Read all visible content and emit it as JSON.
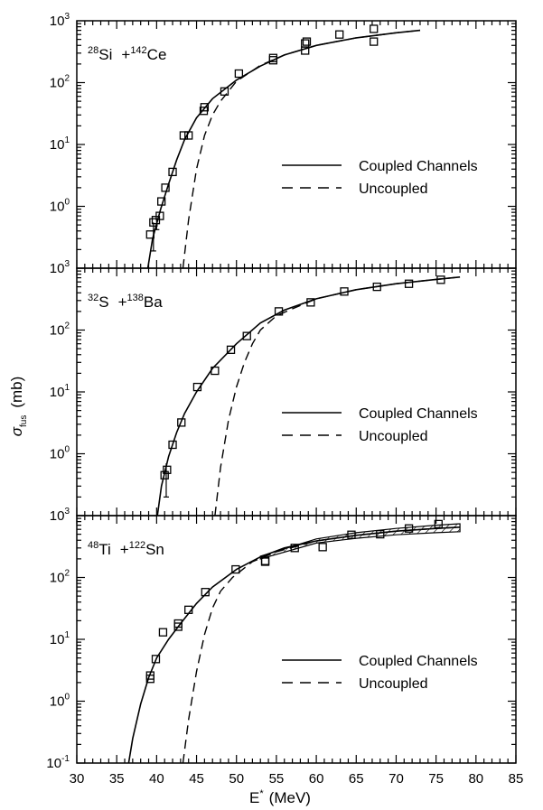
{
  "figure": {
    "ylabel_main": "σ",
    "ylabel_sub": "fus",
    "ylabel_unit": "(mb)",
    "xlabel_main": "E",
    "xlabel_sup": "*",
    "xlabel_unit": "(MeV)"
  },
  "chart_data": [
    {
      "type": "scatter",
      "title_parts": [
        {
          "sup": "28",
          "el": "Si"
        },
        {
          "text": "+"
        },
        {
          "sup": "142",
          "el": "Ce"
        }
      ],
      "xlim": [
        30,
        85
      ],
      "ylim_log": [
        0.1,
        1000
      ],
      "y_scale": "log",
      "legend": {
        "coupled": "Coupled Channels",
        "uncoupled": "Uncoupled"
      },
      "points": [
        [
          39.2,
          0.35
        ],
        [
          39.6,
          0.55
        ],
        [
          39.9,
          0.6
        ],
        [
          40.4,
          0.7
        ],
        [
          40.6,
          1.2
        ],
        [
          41.1,
          2.0
        ],
        [
          42.0,
          3.6
        ],
        [
          43.4,
          14
        ],
        [
          44.0,
          14
        ],
        [
          45.9,
          35
        ],
        [
          46.0,
          40
        ],
        [
          48.5,
          72
        ],
        [
          50.3,
          140
        ],
        [
          54.6,
          230
        ],
        [
          54.6,
          250
        ],
        [
          58.6,
          330
        ],
        [
          58.6,
          430
        ],
        [
          58.8,
          460
        ],
        [
          62.9,
          600
        ],
        [
          67.2,
          460
        ],
        [
          67.2,
          740
        ]
      ],
      "error_bars": [
        [
          39.6,
          0.19,
          0.55
        ],
        [
          40.0,
          0.42,
          0.6
        ]
      ],
      "coupled": [
        [
          38.9,
          0.1
        ],
        [
          39.5,
          0.3
        ],
        [
          40.5,
          0.9
        ],
        [
          41.5,
          2.3
        ],
        [
          42.5,
          5.6
        ],
        [
          43.5,
          12
        ],
        [
          45,
          27
        ],
        [
          47,
          55
        ],
        [
          50,
          110
        ],
        [
          53,
          185
        ],
        [
          56,
          280
        ],
        [
          60,
          400
        ],
        [
          65,
          530
        ],
        [
          70,
          640
        ],
        [
          73,
          700
        ]
      ],
      "uncoupled": [
        [
          43.3,
          0.1
        ],
        [
          44,
          0.6
        ],
        [
          45,
          4
        ],
        [
          46,
          14
        ],
        [
          47,
          30
        ],
        [
          48,
          50
        ],
        [
          50,
          105
        ],
        [
          53,
          190
        ],
        [
          56,
          280
        ],
        [
          60,
          400
        ],
        [
          65,
          530
        ],
        [
          70,
          640
        ],
        [
          73,
          700
        ]
      ]
    },
    {
      "type": "scatter",
      "title_parts": [
        {
          "sup": "32",
          "el": "S"
        },
        {
          "text": "+"
        },
        {
          "sup": "138",
          "el": "Ba"
        }
      ],
      "xlim": [
        30,
        85
      ],
      "ylim_log": [
        0.1,
        1000
      ],
      "y_scale": "log",
      "legend": {
        "coupled": "Coupled Channels",
        "uncoupled": "Uncoupled"
      },
      "points": [
        [
          41.0,
          0.45
        ],
        [
          41.3,
          0.55
        ],
        [
          42.0,
          1.4
        ],
        [
          43.1,
          3.2
        ],
        [
          45.1,
          12
        ],
        [
          47.3,
          22
        ],
        [
          49.3,
          48
        ],
        [
          51.3,
          80
        ],
        [
          55.3,
          200
        ],
        [
          59.3,
          280
        ],
        [
          63.5,
          420
        ],
        [
          67.6,
          500
        ],
        [
          71.6,
          560
        ],
        [
          75.6,
          650
        ]
      ],
      "error_bars": [
        [
          41.2,
          0.2,
          0.7
        ]
      ],
      "coupled": [
        [
          40.1,
          0.1
        ],
        [
          40.6,
          0.3
        ],
        [
          41.5,
          0.9
        ],
        [
          42.5,
          2.2
        ],
        [
          43.5,
          4.5
        ],
        [
          45,
          10
        ],
        [
          47,
          24
        ],
        [
          50,
          60
        ],
        [
          53,
          130
        ],
        [
          56,
          210
        ],
        [
          60,
          320
        ],
        [
          65,
          450
        ],
        [
          70,
          560
        ],
        [
          75,
          660
        ],
        [
          78,
          720
        ]
      ],
      "uncoupled": [
        [
          47.3,
          0.1
        ],
        [
          48,
          0.6
        ],
        [
          49,
          3.5
        ],
        [
          50,
          12
        ],
        [
          51,
          30
        ],
        [
          52,
          60
        ],
        [
          53,
          100
        ],
        [
          55,
          170
        ],
        [
          57,
          220
        ],
        [
          60,
          320
        ],
        [
          65,
          450
        ],
        [
          70,
          560
        ],
        [
          75,
          660
        ],
        [
          78,
          720
        ]
      ]
    },
    {
      "type": "scatter",
      "title_parts": [
        {
          "sup": "48",
          "el": "Ti"
        },
        {
          "text": "+"
        },
        {
          "sup": "122",
          "el": "Sn"
        }
      ],
      "xlim": [
        30,
        85
      ],
      "ylim_log": [
        0.1,
        1000
      ],
      "y_scale": "log",
      "legend": {
        "coupled": "Coupled Channels",
        "uncoupled": "Uncoupled"
      },
      "points": [
        [
          39.2,
          2.3
        ],
        [
          39.2,
          2.6
        ],
        [
          39.9,
          4.8
        ],
        [
          40.8,
          13
        ],
        [
          42.7,
          16
        ],
        [
          42.7,
          18
        ],
        [
          44.0,
          30
        ],
        [
          46.1,
          58
        ],
        [
          49.9,
          135
        ],
        [
          53.6,
          180
        ],
        [
          53.6,
          185
        ],
        [
          57.3,
          300
        ],
        [
          60.8,
          310
        ],
        [
          64.4,
          490
        ],
        [
          68.0,
          500
        ],
        [
          71.6,
          620
        ],
        [
          75.3,
          730
        ]
      ],
      "error_bars": [],
      "coupled": [
        [
          36.5,
          0.1
        ],
        [
          37,
          0.25
        ],
        [
          38,
          0.9
        ],
        [
          39,
          2.4
        ],
        [
          40,
          5
        ],
        [
          41.5,
          10
        ],
        [
          43,
          18
        ],
        [
          45,
          38
        ],
        [
          47,
          70
        ],
        [
          50,
          135
        ],
        [
          53,
          215
        ],
        [
          56,
          300
        ],
        [
          60,
          390
        ],
        [
          65,
          480
        ],
        [
          70,
          560
        ],
        [
          75,
          620
        ],
        [
          78,
          650
        ]
      ],
      "uncoupled": [
        [
          43.3,
          0.1
        ],
        [
          44,
          0.5
        ],
        [
          45,
          3
        ],
        [
          46,
          12
        ],
        [
          47,
          32
        ],
        [
          48,
          60
        ],
        [
          49.5,
          100
        ],
        [
          52,
          180
        ],
        [
          55,
          260
        ],
        [
          60,
          390
        ],
        [
          65,
          480
        ],
        [
          70,
          560
        ],
        [
          75,
          620
        ],
        [
          78,
          650
        ]
      ],
      "band_upper": [
        [
          53,
          220
        ],
        [
          60,
          420
        ],
        [
          65,
          530
        ],
        [
          70,
          620
        ],
        [
          75,
          700
        ],
        [
          78,
          740
        ]
      ],
      "band_lower": [
        [
          53,
          200
        ],
        [
          60,
          360
        ],
        [
          65,
          430
        ],
        [
          70,
          490
        ],
        [
          75,
          530
        ],
        [
          78,
          550
        ]
      ]
    }
  ]
}
